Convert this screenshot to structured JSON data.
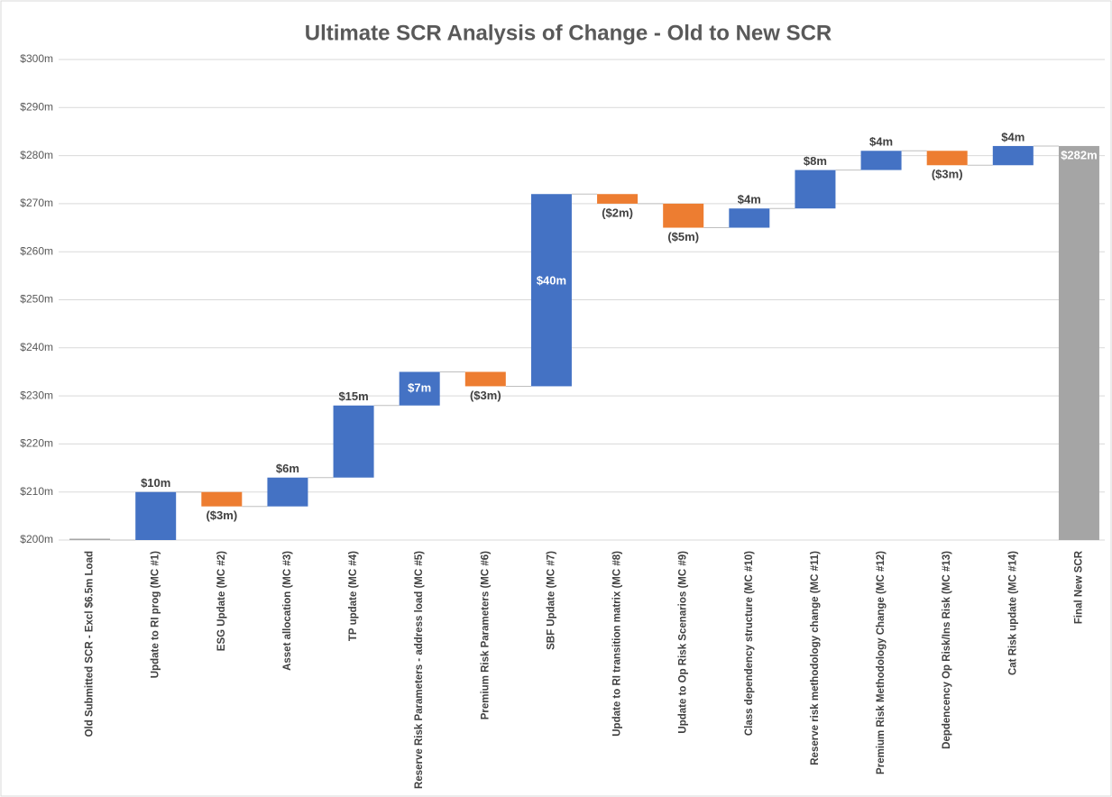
{
  "chart_data": {
    "type": "waterfall",
    "title": "Ultimate SCR Analysis of Change - Old to New SCR",
    "categories": [
      "Old Submitted SCR  - Excl $6.5m Load",
      "Update to RI prog (MC #1)",
      "ESG Update (MC #2)",
      "Asset allocation (MC #3)",
      "TP update (MC #4)",
      "Reserve Risk Parameters - address load (MC #5)",
      "Premium Risk Parameters (MC #6)",
      "SBF Update (MC #7)",
      "Update to RI transition matrix (MC #8)",
      "Update to Op Risk Scenarios (MC #9)",
      "Class dependency structure (MC #10)",
      "Reserve risk methodology change (MC #11)",
      "Premium Risk Methodology Change (MC #12)",
      "Depdencency Op Risk/Ins Risk (MC #13)",
      "Cat Risk update (MC #14)",
      "Final New SCR"
    ],
    "values": [
      200,
      10,
      -3,
      6,
      15,
      7,
      -3,
      40,
      -2,
      -5,
      4,
      8,
      4,
      -3,
      4,
      282
    ],
    "value_labels": [
      null,
      "$10m",
      "($3m)",
      "$6m",
      "$15m",
      "$7m",
      "($3m)",
      "$40m",
      "($2m)",
      "($5m)",
      "$4m",
      "$8m",
      "$4m",
      "($3m)",
      "$4m",
      "$282m"
    ],
    "colors": {
      "increase": "#4472c4",
      "decrease": "#ed7d31",
      "total": "#a5a5a5"
    },
    "ylim": [
      200,
      300
    ],
    "yticks": [
      {
        "value": 200,
        "label": "$200m"
      },
      {
        "value": 210,
        "label": "$210m"
      },
      {
        "value": 220,
        "label": "$220m"
      },
      {
        "value": 230,
        "label": "$230m"
      },
      {
        "value": 240,
        "label": "$240m"
      },
      {
        "value": 250,
        "label": "$250m"
      },
      {
        "value": 260,
        "label": "$260m"
      },
      {
        "value": 270,
        "label": "$270m"
      },
      {
        "value": 280,
        "label": "$280m"
      },
      {
        "value": 290,
        "label": "$290m"
      },
      {
        "value": 300,
        "label": "$300m"
      }
    ],
    "grid": true
  }
}
